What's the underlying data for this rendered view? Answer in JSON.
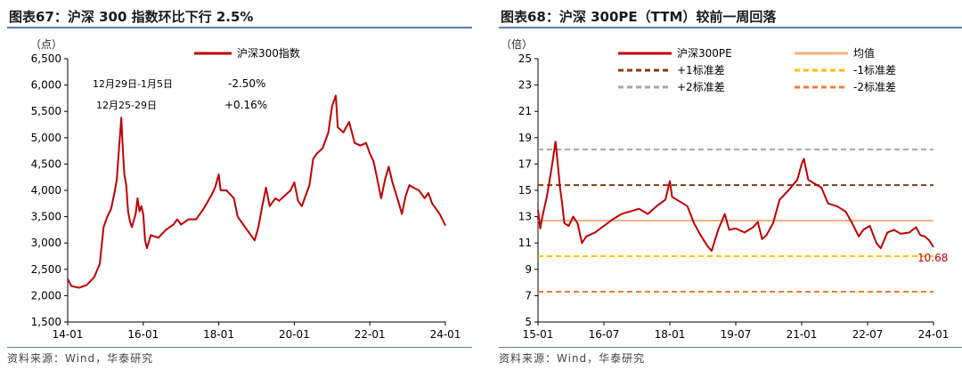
{
  "chart_data": [
    {
      "type": "line",
      "title": "图表67：沪深 300 指数环比下行 2.5%",
      "ylabel": "（点）",
      "ylim": [
        1500,
        6500
      ],
      "yticks": [
        "1,500",
        "2,000",
        "2,500",
        "3,000",
        "3,500",
        "4,000",
        "4,500",
        "5,000",
        "5,500",
        "6,000",
        "6,500"
      ],
      "xlim": [
        2014.0,
        2024.0
      ],
      "xticks": [
        {
          "label": "14-01",
          "x": 2014.0
        },
        {
          "label": "16-01",
          "x": 2016.0
        },
        {
          "label": "18-01",
          "x": 2018.0
        },
        {
          "label": "20-01",
          "x": 2020.0
        },
        {
          "label": "22-01",
          "x": 2022.0
        },
        {
          "label": "24-01",
          "x": 2024.0
        }
      ],
      "legend": [
        "沪深300指数"
      ],
      "annotations": [
        {
          "period": "12月29日-1月5日",
          "change": "-2.50%"
        },
        {
          "period": "12月25-29日",
          "change": "+0.16%"
        }
      ],
      "series": [
        {
          "name": "沪深300指数",
          "color": "#c00000",
          "points": [
            [
              2014.0,
              2320
            ],
            [
              2014.1,
              2180
            ],
            [
              2014.3,
              2150
            ],
            [
              2014.5,
              2200
            ],
            [
              2014.7,
              2350
            ],
            [
              2014.85,
              2600
            ],
            [
              2014.95,
              3300
            ],
            [
              2015.05,
              3500
            ],
            [
              2015.15,
              3650
            ],
            [
              2015.25,
              4000
            ],
            [
              2015.3,
              4200
            ],
            [
              2015.35,
              4700
            ],
            [
              2015.42,
              5380
            ],
            [
              2015.45,
              4900
            ],
            [
              2015.5,
              4300
            ],
            [
              2015.55,
              4100
            ],
            [
              2015.6,
              3600
            ],
            [
              2015.65,
              3400
            ],
            [
              2015.7,
              3300
            ],
            [
              2015.8,
              3550
            ],
            [
              2015.85,
              3850
            ],
            [
              2015.9,
              3600
            ],
            [
              2015.95,
              3700
            ],
            [
              2016.0,
              3550
            ],
            [
              2016.05,
              3050
            ],
            [
              2016.1,
              2900
            ],
            [
              2016.2,
              3150
            ],
            [
              2016.4,
              3100
            ],
            [
              2016.6,
              3250
            ],
            [
              2016.8,
              3350
            ],
            [
              2016.9,
              3450
            ],
            [
              2017.0,
              3350
            ],
            [
              2017.2,
              3450
            ],
            [
              2017.4,
              3450
            ],
            [
              2017.6,
              3650
            ],
            [
              2017.8,
              3900
            ],
            [
              2017.9,
              4050
            ],
            [
              2018.0,
              4300
            ],
            [
              2018.05,
              4000
            ],
            [
              2018.2,
              4000
            ],
            [
              2018.4,
              3850
            ],
            [
              2018.5,
              3500
            ],
            [
              2018.6,
              3400
            ],
            [
              2018.8,
              3200
            ],
            [
              2018.95,
              3050
            ],
            [
              2019.05,
              3300
            ],
            [
              2019.15,
              3700
            ],
            [
              2019.25,
              4050
            ],
            [
              2019.35,
              3700
            ],
            [
              2019.5,
              3850
            ],
            [
              2019.6,
              3800
            ],
            [
              2019.75,
              3900
            ],
            [
              2019.9,
              4000
            ],
            [
              2020.0,
              4150
            ],
            [
              2020.1,
              3800
            ],
            [
              2020.2,
              3700
            ],
            [
              2020.3,
              3900
            ],
            [
              2020.4,
              4100
            ],
            [
              2020.5,
              4600
            ],
            [
              2020.6,
              4700
            ],
            [
              2020.75,
              4800
            ],
            [
              2020.9,
              5100
            ],
            [
              2021.0,
              5600
            ],
            [
              2021.1,
              5800
            ],
            [
              2021.15,
              5200
            ],
            [
              2021.3,
              5100
            ],
            [
              2021.45,
              5300
            ],
            [
              2021.6,
              4900
            ],
            [
              2021.75,
              4850
            ],
            [
              2021.9,
              4900
            ],
            [
              2022.0,
              4700
            ],
            [
              2022.1,
              4550
            ],
            [
              2022.2,
              4200
            ],
            [
              2022.3,
              3850
            ],
            [
              2022.4,
              4200
            ],
            [
              2022.5,
              4450
            ],
            [
              2022.6,
              4150
            ],
            [
              2022.75,
              3800
            ],
            [
              2022.85,
              3550
            ],
            [
              2022.95,
              3900
            ],
            [
              2023.05,
              4100
            ],
            [
              2023.15,
              4050
            ],
            [
              2023.3,
              4000
            ],
            [
              2023.45,
              3850
            ],
            [
              2023.55,
              3950
            ],
            [
              2023.65,
              3750
            ],
            [
              2023.75,
              3650
            ],
            [
              2023.85,
              3550
            ],
            [
              2023.92,
              3450
            ],
            [
              2024.0,
              3330
            ]
          ]
        }
      ]
    },
    {
      "type": "line",
      "title": "图表68：沪深 300PE（TTM）较前一周回落",
      "ylabel": "（倍）",
      "ylim": [
        5,
        25
      ],
      "yticks": [
        "5",
        "7",
        "9",
        "11",
        "13",
        "15",
        "17",
        "19",
        "21",
        "23",
        "25"
      ],
      "xlim": [
        2015.0,
        2024.0
      ],
      "xticks": [
        {
          "label": "15-01",
          "x": 2015.0
        },
        {
          "label": "16-07",
          "x": 2016.5
        },
        {
          "label": "18-01",
          "x": 2018.0
        },
        {
          "label": "19-07",
          "x": 2019.5
        },
        {
          "label": "21-01",
          "x": 2021.0
        },
        {
          "label": "22-07",
          "x": 2022.5
        },
        {
          "label": "24-01",
          "x": 2024.0
        }
      ],
      "legend": [
        "沪深300PE",
        "均值",
        "+1标准差",
        "-1标准差",
        "+2标准差",
        "-2标准差"
      ],
      "last_value_label": "10.68",
      "reference_lines": [
        {
          "name": "均值",
          "value": 12.7,
          "color": "#f4b183",
          "dash": ""
        },
        {
          "name": "+1标准差",
          "value": 15.4,
          "color": "#843c0c",
          "dash": "6,4"
        },
        {
          "name": "-1标准差",
          "value": 10.0,
          "color": "#ffc000",
          "dash": "6,4"
        },
        {
          "name": "+2标准差",
          "value": 18.1,
          "color": "#a6a6a6",
          "dash": "6,4"
        },
        {
          "name": "-2标准差",
          "value": 7.3,
          "color": "#ed7d31",
          "dash": "6,4"
        }
      ],
      "series": [
        {
          "name": "沪深300PE",
          "color": "#c00000",
          "points": [
            [
              2015.0,
              13.5
            ],
            [
              2015.05,
              12.1
            ],
            [
              2015.1,
              13.0
            ],
            [
              2015.2,
              14.5
            ],
            [
              2015.3,
              16.5
            ],
            [
              2015.4,
              18.7
            ],
            [
              2015.45,
              17.0
            ],
            [
              2015.5,
              15.2
            ],
            [
              2015.55,
              14.0
            ],
            [
              2015.6,
              12.5
            ],
            [
              2015.7,
              12.3
            ],
            [
              2015.8,
              13.0
            ],
            [
              2015.9,
              12.5
            ],
            [
              2016.0,
              11.0
            ],
            [
              2016.1,
              11.5
            ],
            [
              2016.3,
              11.8
            ],
            [
              2016.5,
              12.3
            ],
            [
              2016.7,
              12.8
            ],
            [
              2016.9,
              13.2
            ],
            [
              2017.1,
              13.4
            ],
            [
              2017.3,
              13.6
            ],
            [
              2017.5,
              13.2
            ],
            [
              2017.7,
              13.8
            ],
            [
              2017.9,
              14.3
            ],
            [
              2018.0,
              15.7
            ],
            [
              2018.05,
              14.5
            ],
            [
              2018.2,
              14.2
            ],
            [
              2018.4,
              13.8
            ],
            [
              2018.55,
              12.5
            ],
            [
              2018.7,
              11.6
            ],
            [
              2018.85,
              10.8
            ],
            [
              2018.95,
              10.4
            ],
            [
              2019.1,
              12.0
            ],
            [
              2019.25,
              13.2
            ],
            [
              2019.35,
              12.0
            ],
            [
              2019.5,
              12.1
            ],
            [
              2019.7,
              11.8
            ],
            [
              2019.9,
              12.2
            ],
            [
              2020.0,
              12.6
            ],
            [
              2020.1,
              11.3
            ],
            [
              2020.2,
              11.6
            ],
            [
              2020.35,
              12.5
            ],
            [
              2020.5,
              14.3
            ],
            [
              2020.7,
              15.0
            ],
            [
              2020.9,
              15.8
            ],
            [
              2021.0,
              17.0
            ],
            [
              2021.05,
              17.4
            ],
            [
              2021.15,
              15.8
            ],
            [
              2021.3,
              15.5
            ],
            [
              2021.45,
              15.2
            ],
            [
              2021.6,
              14.0
            ],
            [
              2021.8,
              13.8
            ],
            [
              2022.0,
              13.4
            ],
            [
              2022.15,
              12.5
            ],
            [
              2022.3,
              11.5
            ],
            [
              2022.4,
              12.0
            ],
            [
              2022.55,
              12.3
            ],
            [
              2022.7,
              11.0
            ],
            [
              2022.8,
              10.6
            ],
            [
              2022.95,
              11.8
            ],
            [
              2023.1,
              12.0
            ],
            [
              2023.25,
              11.7
            ],
            [
              2023.45,
              11.8
            ],
            [
              2023.6,
              12.2
            ],
            [
              2023.7,
              11.6
            ],
            [
              2023.8,
              11.5
            ],
            [
              2023.9,
              11.2
            ],
            [
              2024.0,
              10.68
            ]
          ]
        }
      ]
    }
  ],
  "source_text": "资料来源：Wind，华泰研究"
}
